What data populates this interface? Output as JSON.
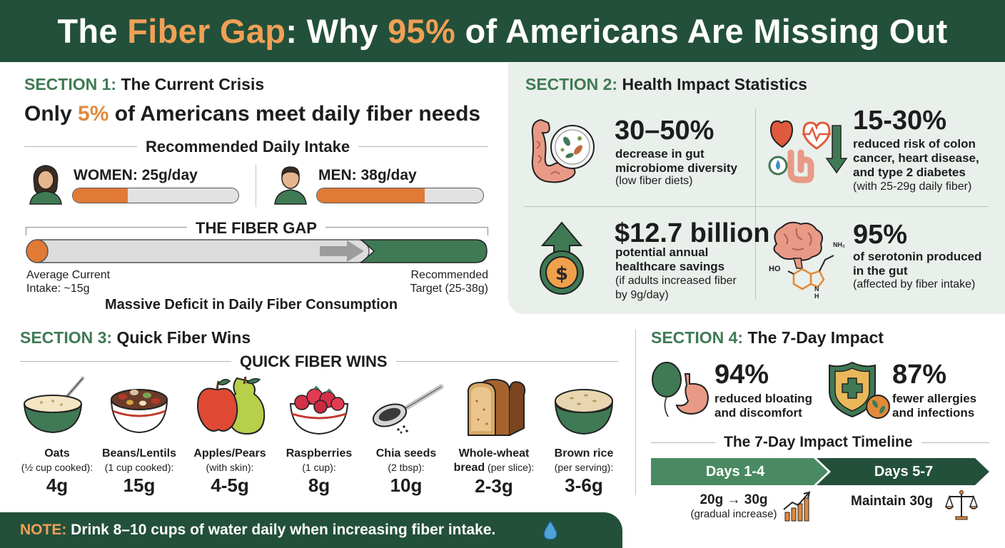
{
  "header": {
    "title_pre": "The ",
    "title_hl1": "Fiber Gap",
    "title_mid": ": Why ",
    "title_hl2": "95%",
    "title_post": " of Americans Are Missing Out"
  },
  "section1": {
    "label": "SECTION 1:",
    "title": "The Current Crisis",
    "headline_pre": "Only ",
    "headline_hl": "5%",
    "headline_post": " of Americans meet daily fiber needs",
    "subhead": "Recommended Daily Intake",
    "women_label": "WOMEN: 25g/day",
    "women_fill_fraction": 0.33,
    "men_label": "MEN: 38g/day",
    "men_fill_fraction": 0.65,
    "gap_title": "THE FIBER GAP",
    "current_line1": "Average Current",
    "current_line2": "Intake: ~15g",
    "target_line1": "Recommended",
    "target_line2": "Target (25-38g)",
    "deficit": "Massive Deficit in Daily Fiber Consumption"
  },
  "section2": {
    "label": "SECTION 2:",
    "title": "Health Impact Statistics",
    "stats": [
      {
        "big": "30–50%",
        "bold": "decrease in gut microbiome diversity",
        "note": "(low fiber diets)"
      },
      {
        "big": "15-30%",
        "bold": "reduced risk of colon cancer, heart disease, and type 2 diabetes",
        "note": "(with 25-29g daily fiber)"
      },
      {
        "big": "$12.7 billion",
        "bold": "potential annual healthcare savings",
        "note": "(if adults increased fiber by 9g/day)"
      },
      {
        "big": "95%",
        "bold": "of serotonin produced in the gut",
        "note": "(affected by fiber intake)"
      }
    ],
    "molecule_labels": {
      "nh2": "NH₂",
      "ho": "HO",
      "nh": "N\nH"
    }
  },
  "section3": {
    "label": "SECTION 3:",
    "title": "Quick Fiber Wins",
    "subhead": "QUICK FIBER WINS",
    "foods": [
      {
        "name": "Oats",
        "qty": "(½ cup cooked):",
        "value": "4g"
      },
      {
        "name": "Beans/Lentils",
        "qty": "(1 cup cooked):",
        "value": "15g"
      },
      {
        "name": "Apples/Pears",
        "qty": "(with skin):",
        "value": "4-5g"
      },
      {
        "name": "Raspberries",
        "qty": "(1 cup):",
        "value": "8g"
      },
      {
        "name": "Chia seeds",
        "qty": "(2 tbsp):",
        "value": "10g"
      },
      {
        "name": "Whole-wheat",
        "qty_bold": "bread",
        "qty": " (per slice):",
        "value": "2-3g"
      },
      {
        "name": "Brown rice",
        "qty": "(per serving):",
        "value": "3-6g"
      }
    ]
  },
  "note": {
    "label": "NOTE:",
    "text": " Drink 8–10 cups of water daily when increasing fiber intake."
  },
  "section4": {
    "label": "SECTION 4:",
    "title": "The 7-Day Impact",
    "stat1_big": "94%",
    "stat1_line1": "reduced bloating",
    "stat1_line2": "and discomfort",
    "stat2_big": "87%",
    "stat2_line1": "fewer allergies",
    "stat2_line2": "and infections",
    "timeline_title": "The 7-Day Impact Timeline",
    "phase1": "Days 1-4",
    "phase2": "Days 5-7",
    "phase1_detail": "20g → 30g",
    "phase1_note": "(gradual increase)",
    "phase2_detail": "Maintain 30g"
  },
  "colors": {
    "dark_green": "#23503a",
    "mid_green": "#3f7a55",
    "accent_orange": "#e08a3c",
    "panel_bg": "#e9efea"
  }
}
